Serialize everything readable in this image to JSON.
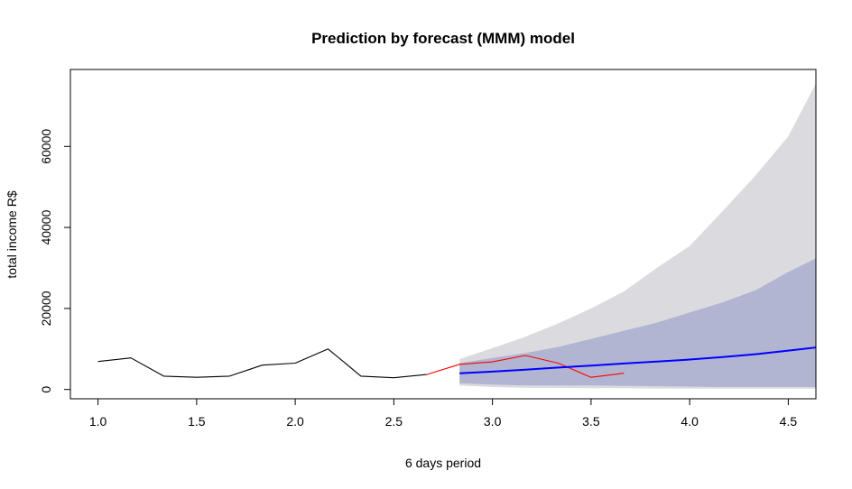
{
  "chart_data": {
    "type": "line",
    "title": "Prediction by forecast (MMM) model",
    "xlabel": "6 days period",
    "ylabel": "total income R$",
    "xlim": [
      0.86,
      4.64
    ],
    "ylim": [
      -2300,
      79000
    ],
    "x_ticks": [
      1.0,
      1.5,
      2.0,
      2.5,
      3.0,
      3.5,
      4.0,
      4.5
    ],
    "x_tick_labels": [
      "1.0",
      "1.5",
      "2.0",
      "2.5",
      "3.0",
      "3.5",
      "4.0",
      "4.5"
    ],
    "y_ticks": [
      0,
      20000,
      40000,
      60000
    ],
    "y_tick_labels": [
      "0",
      "20000",
      "40000",
      "60000"
    ],
    "grid": false,
    "legend": "none",
    "colors": {
      "observed": "#000000",
      "actual_test": "#ff0000",
      "forecast": "#0000ff",
      "band95": "#dbdbdf",
      "band80": "#b1b5d1"
    },
    "series": [
      {
        "role": "observed",
        "x": [
          1.0,
          1.1667,
          1.3333,
          1.5,
          1.6667,
          1.8333,
          2.0,
          2.1667,
          2.3333,
          2.5,
          2.6667
        ],
        "y": [
          6900,
          7800,
          3300,
          3000,
          3300,
          6000,
          6500,
          10000,
          3300,
          2900,
          3700
        ]
      },
      {
        "role": "actual_test",
        "x": [
          2.6667,
          2.8333,
          3.0,
          3.1667,
          3.3333,
          3.5,
          3.6667
        ],
        "y": [
          3700,
          6200,
          6800,
          8400,
          6500,
          3000,
          4000
        ]
      },
      {
        "role": "forecast",
        "x": [
          2.8333,
          3.0,
          3.1667,
          3.3333,
          3.5,
          3.6667,
          3.8333,
          4.0,
          4.1667,
          4.3333,
          4.5,
          4.6667
        ],
        "y": [
          4000,
          4400,
          4900,
          5400,
          5900,
          6400,
          6900,
          7400,
          8000,
          8700,
          9600,
          10500
        ]
      }
    ],
    "bands": [
      {
        "role": "band95",
        "x": [
          2.8333,
          3.0,
          3.1667,
          3.3333,
          3.5,
          3.6667,
          3.8333,
          4.0,
          4.1667,
          4.3333,
          4.5,
          4.6667
        ],
        "lower": [
          1000,
          600,
          400,
          400,
          300,
          300,
          200,
          200,
          200,
          200,
          200,
          200
        ],
        "upper": [
          7500,
          10200,
          13000,
          16300,
          20000,
          24200,
          30000,
          35400,
          44000,
          52800,
          62500,
          78000
        ]
      },
      {
        "role": "band80",
        "x": [
          2.8333,
          3.0,
          3.1667,
          3.3333,
          3.5,
          3.6667,
          3.8333,
          4.0,
          4.1667,
          4.3333,
          4.5,
          4.6667
        ],
        "lower": [
          1500,
          1200,
          1000,
          1000,
          1000,
          900,
          800,
          700,
          600,
          600,
          600,
          600
        ],
        "upper": [
          6500,
          7800,
          9000,
          10500,
          12500,
          14500,
          16500,
          19000,
          21500,
          24500,
          29000,
          33000
        ]
      }
    ]
  }
}
